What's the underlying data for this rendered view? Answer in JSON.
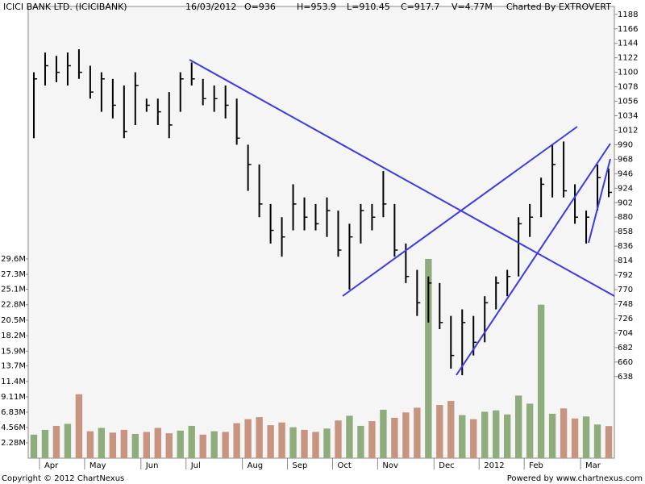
{
  "header": {
    "title": "ICICI BANK LTD. (ICICIBANK)",
    "date": "16/03/2012",
    "open": "O=936",
    "high": "H=953.9",
    "low": "L=910.45",
    "close": "C=917.7",
    "volume": "V=4.77M",
    "credit": "Charted By EXTROVERT"
  },
  "footer": {
    "copyright": "Copyright © 2012 ChartNexus",
    "powered": "Powered by www.chartnexus.com"
  },
  "chart_data": {
    "type": "ohlc",
    "categories": [
      null,
      "Apr",
      null,
      null,
      null,
      "May",
      null,
      null,
      null,
      null,
      "Jun",
      null,
      null,
      null,
      "Jul",
      null,
      null,
      null,
      null,
      "Aug",
      null,
      null,
      null,
      "Sep",
      null,
      null,
      null,
      "Oct",
      null,
      null,
      null,
      "Nov",
      null,
      null,
      null,
      null,
      "Dec",
      null,
      null,
      null,
      "2012",
      null,
      null,
      null,
      "Feb",
      null,
      null,
      null,
      null,
      "Mar",
      null,
      null
    ],
    "high": [
      1100,
      1130,
      1125,
      1130,
      1135,
      1110,
      1100,
      1090,
      1080,
      1100,
      1060,
      1060,
      1070,
      1100,
      1115,
      1090,
      1080,
      1080,
      1060,
      990,
      960,
      900,
      880,
      930,
      910,
      900,
      910,
      890,
      870,
      900,
      900,
      950,
      900,
      840,
      800,
      790,
      780,
      730,
      740,
      730,
      760,
      790,
      800,
      880,
      900,
      940,
      990,
      995,
      930,
      890,
      960,
      953.9
    ],
    "low": [
      1000,
      1080,
      1085,
      1080,
      1090,
      1060,
      1040,
      1030,
      1000,
      1020,
      1040,
      1020,
      1000,
      1040,
      1080,
      1050,
      1040,
      1030,
      990,
      920,
      880,
      840,
      820,
      860,
      860,
      860,
      850,
      820,
      770,
      840,
      860,
      880,
      820,
      780,
      730,
      720,
      710,
      650,
      640,
      670,
      690,
      740,
      760,
      790,
      850,
      880,
      910,
      910,
      870,
      840,
      890,
      910.45
    ],
    "close": [
      1090,
      1110,
      1100,
      1110,
      1100,
      1070,
      1090,
      1050,
      1010,
      1080,
      1050,
      1040,
      1020,
      1090,
      1090,
      1060,
      1060,
      1050,
      1000,
      960,
      900,
      860,
      850,
      900,
      880,
      870,
      890,
      830,
      850,
      890,
      880,
      900,
      830,
      790,
      750,
      780,
      720,
      670,
      720,
      690,
      750,
      780,
      790,
      870,
      880,
      930,
      960,
      920,
      880,
      880,
      940,
      917.7
    ],
    "volume": [
      3.5,
      4.2,
      4.8,
      5.1,
      9.5,
      4.0,
      4.5,
      3.8,
      4.2,
      3.6,
      3.9,
      4.5,
      3.7,
      4.1,
      4.8,
      3.5,
      4.0,
      3.9,
      5.2,
      5.8,
      6.1,
      4.9,
      5.3,
      4.6,
      4.2,
      3.9,
      4.4,
      5.6,
      6.3,
      4.8,
      5.5,
      7.2,
      6.0,
      6.8,
      7.5,
      29.6,
      7.9,
      8.5,
      6.4,
      5.8,
      6.9,
      7.1,
      6.5,
      9.3,
      8.1,
      22.8,
      6.6,
      7.4,
      5.9,
      6.2,
      5.0,
      4.77
    ],
    "color": "#000000",
    "up_color": "#8fad7c",
    "down_color": "#c7957f",
    "ylim": [
      514,
      1200
    ],
    "yticks": [
      638,
      660,
      682,
      704,
      726,
      748,
      770,
      792,
      814,
      836,
      858,
      880,
      902,
      924,
      946,
      968,
      990,
      1012,
      1034,
      1056,
      1078,
      1100,
      1122,
      1144,
      1166,
      1188
    ],
    "y2lim": [
      0,
      67.1
    ],
    "y2ticks": [
      {
        "value": 2.28,
        "label": "2.28M"
      },
      {
        "value": 4.56,
        "label": "4.56M"
      },
      {
        "value": 6.83,
        "label": "6.83M"
      },
      {
        "value": 9.11,
        "label": "9.11M"
      },
      {
        "value": 11.4,
        "label": "11.4M"
      },
      {
        "value": 13.7,
        "label": "13.7M"
      },
      {
        "value": 15.9,
        "label": "15.9M"
      },
      {
        "value": 18.2,
        "label": "18.2M"
      },
      {
        "value": 20.5,
        "label": "20.5M"
      },
      {
        "value": 22.8,
        "label": "22.8M"
      },
      {
        "value": 25.1,
        "label": "25.1M"
      },
      {
        "value": 27.3,
        "label": "27.3M"
      },
      {
        "value": 29.6,
        "label": "29.6M"
      }
    ],
    "grid": false
  }
}
